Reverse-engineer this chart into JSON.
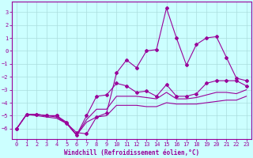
{
  "xlabel": "Windchill (Refroidissement éolien,°C)",
  "x": [
    0,
    1,
    2,
    3,
    4,
    5,
    6,
    7,
    8,
    9,
    10,
    11,
    12,
    13,
    14,
    15,
    16,
    17,
    18,
    19,
    20,
    21,
    22,
    23
  ],
  "line1": [
    -6.0,
    -4.9,
    -4.9,
    -5.0,
    -5.0,
    -5.6,
    -6.3,
    -6.4,
    -5.1,
    -4.8,
    -1.7,
    -0.7,
    -1.3,
    0.0,
    0.1,
    3.3,
    1.0,
    -1.1,
    0.5,
    1.0,
    1.1,
    -0.5,
    -2.1,
    -2.3
  ],
  "line2": [
    -6.0,
    -4.9,
    -4.9,
    -5.0,
    -5.0,
    -5.5,
    -6.5,
    -5.0,
    -3.5,
    -3.4,
    -2.5,
    -2.7,
    -3.2,
    -3.1,
    -3.5,
    -2.6,
    -3.5,
    -3.5,
    -3.3,
    -2.5,
    -2.3,
    -2.3,
    -2.3,
    -2.7
  ],
  "line3": [
    -6.0,
    -4.9,
    -4.9,
    -5.0,
    -5.1,
    -5.6,
    -6.5,
    -5.3,
    -4.5,
    -4.5,
    -3.5,
    -3.5,
    -3.5,
    -3.6,
    -3.7,
    -3.2,
    -3.7,
    -3.7,
    -3.6,
    -3.4,
    -3.2,
    -3.2,
    -3.3,
    -3.0
  ],
  "line4": [
    -6.0,
    -4.9,
    -5.0,
    -5.1,
    -5.2,
    -5.6,
    -6.5,
    -5.5,
    -5.1,
    -5.0,
    -4.2,
    -4.2,
    -4.2,
    -4.3,
    -4.3,
    -4.0,
    -4.1,
    -4.1,
    -4.1,
    -4.0,
    -3.9,
    -3.8,
    -3.8,
    -3.5
  ],
  "color": "#990099",
  "bg_color": "#ccffff",
  "grid_color": "#aadddd",
  "ylim": [
    -6.8,
    3.8
  ],
  "xlim": [
    -0.5,
    23.5
  ],
  "yticks": [
    -6,
    -5,
    -4,
    -3,
    -2,
    -1,
    0,
    1,
    2,
    3
  ],
  "xticks": [
    0,
    1,
    2,
    3,
    4,
    5,
    6,
    7,
    8,
    9,
    10,
    11,
    12,
    13,
    14,
    15,
    16,
    17,
    18,
    19,
    20,
    21,
    22,
    23
  ],
  "line1_marker": true,
  "line2_marker": true,
  "line3_marker": false,
  "line4_marker": false,
  "marker": "D",
  "markersize": 2.0,
  "linewidth": 0.8,
  "tick_fontsize": 5.0,
  "xlabel_fontsize": 5.5
}
